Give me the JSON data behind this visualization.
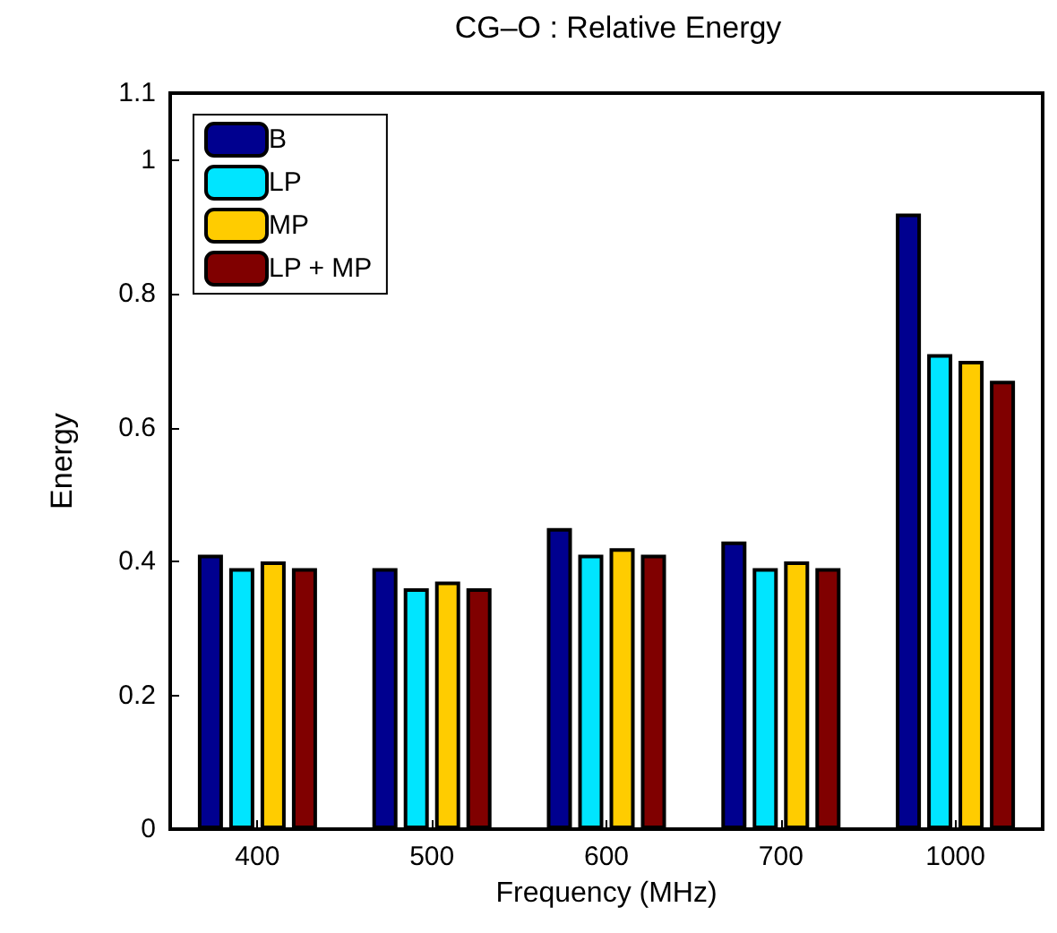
{
  "chart_data": {
    "type": "bar",
    "title": "CG–O : Relative Energy",
    "xlabel": "Frequency (MHz)",
    "ylabel": "Energy",
    "categories": [
      "400",
      "500",
      "600",
      "700",
      "1000"
    ],
    "series": [
      {
        "name": "B",
        "color": "#00008f",
        "values": [
          0.41,
          0.39,
          0.45,
          0.43,
          0.92
        ]
      },
      {
        "name": "LP",
        "color": "#00e5ff",
        "values": [
          0.39,
          0.36,
          0.41,
          0.39,
          0.71
        ]
      },
      {
        "name": "MP",
        "color": "#ffcc00",
        "values": [
          0.4,
          0.37,
          0.42,
          0.4,
          0.7
        ]
      },
      {
        "name": "LP + MP",
        "color": "#800000",
        "values": [
          0.39,
          0.36,
          0.41,
          0.39,
          0.67
        ]
      }
    ],
    "ylim": [
      0,
      1.1
    ],
    "yticks": [
      0,
      0.2,
      0.4,
      0.6,
      0.8,
      1,
      1.1
    ],
    "grid": false,
    "legend": "top left"
  }
}
